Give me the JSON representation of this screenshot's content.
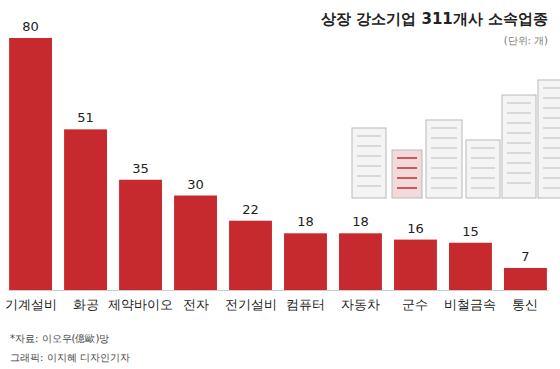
{
  "chart_data": {
    "type": "bar",
    "title": "상장 강소기업 311개사 소속업종",
    "subtitle": "(단위: 개)",
    "categories": [
      "기계설비",
      "화공",
      "제약바이오",
      "전자",
      "전기설비",
      "컴퓨터",
      "자동차",
      "군수",
      "비철금속",
      "통신"
    ],
    "values": [
      80,
      51,
      35,
      30,
      22,
      18,
      18,
      16,
      15,
      7
    ],
    "color": "#c62a2e",
    "data_labels": true,
    "tick_labels": "x",
    "grid": false,
    "annotations": [
      "*자료: 이오우(億歐)망",
      "그래픽: 이지혜 디자인기자"
    ]
  }
}
